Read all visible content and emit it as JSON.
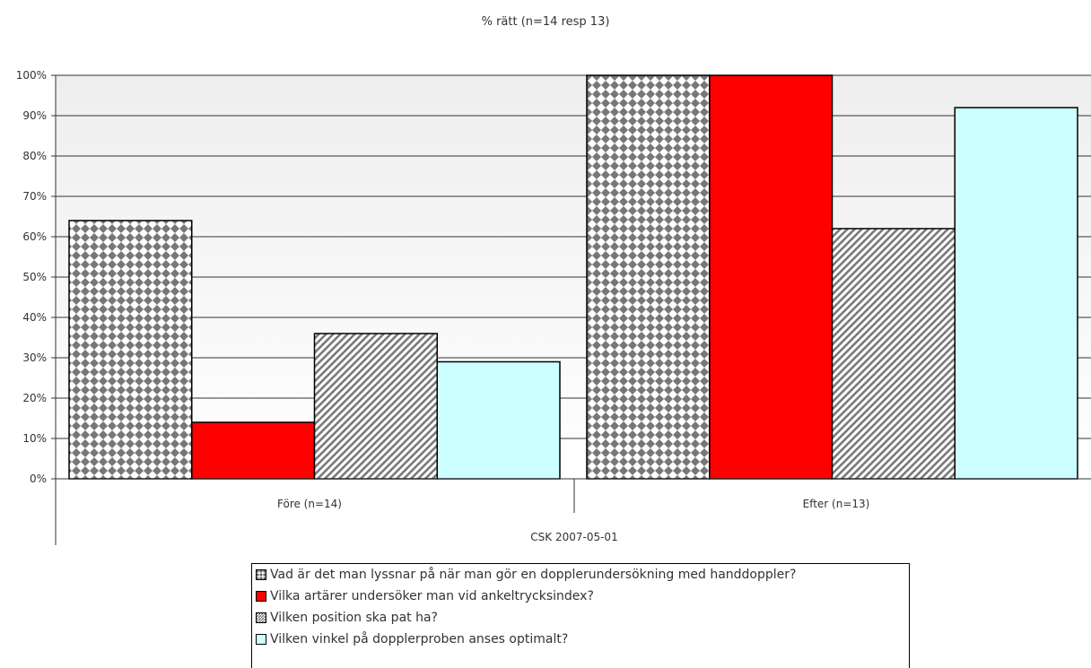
{
  "chart_data": {
    "type": "bar",
    "title": "% rätt (n=14 resp 13)",
    "categories": [
      "Före (n=14)",
      "Efter (n=13)"
    ],
    "group_label": "CSK 2007-05-01",
    "ylim": [
      0,
      100
    ],
    "yticks": [
      "0%",
      "10%",
      "20%",
      "30%",
      "40%",
      "50%",
      "60%",
      "70%",
      "80%",
      "90%",
      "100%"
    ],
    "grid": true,
    "legend_position": "bottom",
    "series": [
      {
        "name": "Vad är det man lyssnar på när man gör en dopplerundersökning med handdoppler?",
        "values": [
          64,
          100
        ],
        "fill": "checker",
        "color": "#808080"
      },
      {
        "name": "Vilka artärer undersöker man vid ankeltrycksindex?",
        "values": [
          14,
          100
        ],
        "fill": "solid",
        "color": "#ff0000"
      },
      {
        "name": "Vilken position ska pat ha?",
        "values": [
          36,
          62
        ],
        "fill": "diagonal",
        "color": "#808080"
      },
      {
        "name": "Vilken vinkel på dopplerproben anses optimalt?",
        "values": [
          29,
          92
        ],
        "fill": "solid",
        "color": "#ccffff"
      }
    ]
  }
}
